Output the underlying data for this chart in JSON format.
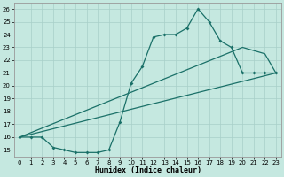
{
  "xlabel": "Humidex (Indice chaleur)",
  "bg_color": "#c5e8e0",
  "grid_color": "#a8cfc8",
  "line_color": "#1a7068",
  "xlim": [
    -0.5,
    23.5
  ],
  "ylim": [
    14.5,
    26.5
  ],
  "xticks": [
    0,
    1,
    2,
    3,
    4,
    5,
    6,
    7,
    8,
    9,
    10,
    11,
    12,
    13,
    14,
    15,
    16,
    17,
    18,
    19,
    20,
    21,
    22,
    23
  ],
  "yticks": [
    15,
    16,
    17,
    18,
    19,
    20,
    21,
    22,
    23,
    24,
    25,
    26
  ],
  "curve_x": [
    0,
    1,
    2,
    3,
    4,
    5,
    6,
    7,
    8,
    9,
    10,
    11,
    12,
    13,
    14,
    15,
    16,
    17,
    18,
    19,
    20,
    21,
    22,
    23
  ],
  "curve_y": [
    16,
    16,
    16,
    15.2,
    15.0,
    14.8,
    14.8,
    14.8,
    15.0,
    17.2,
    20.2,
    21.5,
    23.8,
    24.0,
    24.0,
    24.5,
    26.0,
    25.0,
    23.5,
    23.0,
    21.0,
    21.0,
    21.0,
    21.0
  ],
  "trend1_x": [
    0,
    23
  ],
  "trend1_y": [
    16.0,
    21.0
  ],
  "trend2_x": [
    0,
    20,
    22,
    23
  ],
  "trend2_y": [
    16.0,
    23.0,
    22.5,
    21.0
  ]
}
